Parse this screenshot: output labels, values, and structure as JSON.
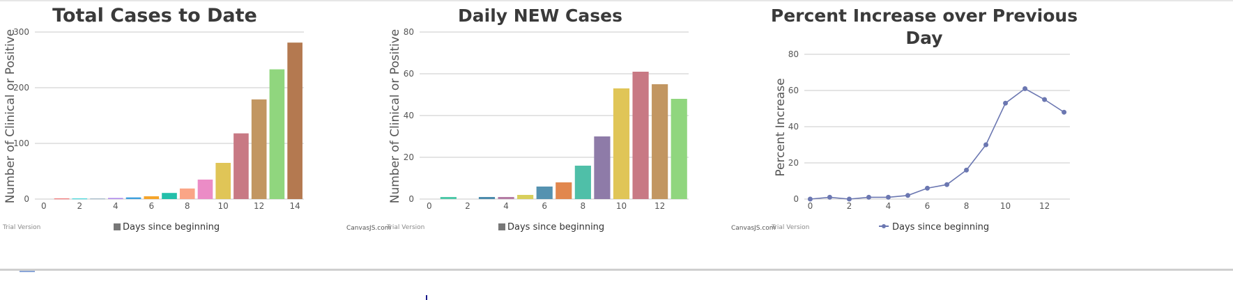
{
  "charts": {
    "total": {
      "credit_brand": "",
      "credit_trial": "Trial Version",
      "legend_label": "Days since beginning"
    },
    "daily": {
      "credit_brand": "CanvasJS.com",
      "credit_trial": "Trial Version",
      "legend_label": "Days since beginning"
    },
    "percent": {
      "credit_brand": "CanvasJS.com",
      "credit_trial": "Trial Version",
      "legend_label": "Days since beginning"
    }
  },
  "chart_data": [
    {
      "type": "bar",
      "title": "Total Cases to Date",
      "xlabel": "",
      "ylabel": "Number of Clinical or Positive",
      "x": [
        0,
        1,
        2,
        3,
        4,
        5,
        6,
        7,
        8,
        9,
        10,
        11,
        12,
        13,
        14
      ],
      "values": [
        0,
        1,
        1,
        1,
        2,
        3,
        5,
        11,
        19,
        35,
        65,
        118,
        179,
        233,
        281
      ],
      "xticks": [
        0,
        2,
        4,
        6,
        8,
        10,
        12,
        14
      ],
      "yticks": [
        0,
        100,
        200,
        300
      ],
      "ylim": [
        0,
        300
      ],
      "xlim": [
        -0.5,
        14.5
      ],
      "grid": true,
      "legend": "bottom",
      "colors": [
        "#4661EE",
        "#EC5657",
        "#1BCDD1",
        "#8FAABB",
        "#B08BEB",
        "#3EA0DD",
        "#F5A52A",
        "#23BFAA",
        "#FAA586",
        "#EB8CC6",
        "#E0C557",
        "#C87984",
        "#C29661",
        "#90D67E",
        "#B47950"
      ]
    },
    {
      "type": "bar",
      "title": "Daily NEW Cases",
      "xlabel": "",
      "ylabel": "Number of Clinical or Positive",
      "x": [
        0,
        1,
        2,
        3,
        4,
        5,
        6,
        7,
        8,
        9,
        10,
        11,
        12,
        13
      ],
      "values": [
        0,
        1,
        0,
        1,
        1,
        2,
        6,
        8,
        16,
        30,
        53,
        61,
        55,
        48
      ],
      "xticks": [
        0,
        2,
        4,
        6,
        8,
        10,
        12
      ],
      "yticks": [
        0,
        20,
        40,
        60,
        80
      ],
      "ylim": [
        0,
        80
      ],
      "xlim": [
        -0.5,
        13.5
      ],
      "grid": true,
      "legend": "bottom",
      "colors": [
        "#4661EE",
        "#4FC8A8",
        "#1BCDD1",
        "#4C8BAC",
        "#B47CA4",
        "#D8CF5C",
        "#5592B0",
        "#E1874E",
        "#4FBFA8",
        "#8E7BA8",
        "#E0C557",
        "#C87984",
        "#C29661",
        "#90D67E"
      ]
    },
    {
      "type": "line",
      "title": "Percent Increase over Previous Day",
      "xlabel": "",
      "ylabel": "Percent Increase",
      "x": [
        0,
        1,
        2,
        3,
        4,
        5,
        6,
        7,
        8,
        9,
        10,
        11,
        12,
        13
      ],
      "values": [
        0,
        1,
        0,
        1,
        1,
        2,
        6,
        8,
        16,
        30,
        53,
        61,
        55,
        48
      ],
      "xticks": [
        0,
        2,
        4,
        6,
        8,
        10,
        12
      ],
      "yticks": [
        0,
        20,
        40,
        60,
        80
      ],
      "ylim": [
        0,
        80
      ],
      "xlim": [
        -0.3,
        13.3
      ],
      "grid": true,
      "legend": "bottom",
      "line_color": "#6B77B1"
    }
  ]
}
